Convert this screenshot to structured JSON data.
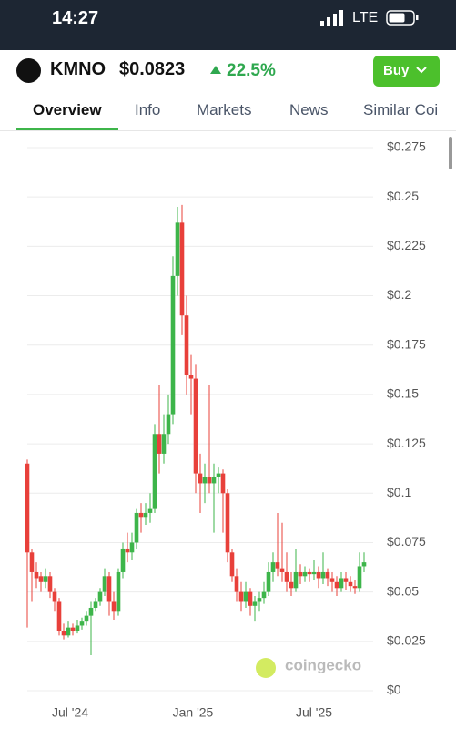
{
  "status_bar": {
    "time": "14:27",
    "network": "LTE"
  },
  "header": {
    "symbol": "KMNO",
    "price": "$0.0823",
    "change": "22.5%",
    "button": "Buy"
  },
  "tabs": [
    "Overview",
    "Info",
    "Markets",
    "News",
    "Similar Coi"
  ],
  "watermark": "coingecko",
  "chart_data": {
    "type": "candlestick",
    "up_color": "#3db54a",
    "down_color": "#e8403a",
    "grid": true,
    "x": [
      0,
      1,
      2,
      3,
      4,
      5,
      6,
      7,
      8,
      9,
      10,
      11,
      12,
      13,
      14,
      15,
      16,
      17,
      18,
      19,
      20,
      21,
      22,
      23,
      24,
      25,
      26,
      27,
      28,
      29,
      30,
      31,
      32,
      33,
      34,
      35,
      36,
      37,
      38,
      39,
      40,
      41,
      42,
      43,
      44,
      45,
      46,
      47,
      48,
      49,
      50,
      51,
      52,
      53,
      54,
      55,
      56,
      57,
      58,
      59,
      60,
      61,
      62,
      63,
      64,
      65,
      66,
      67,
      68,
      69,
      70,
      71,
      72,
      73,
      74
    ],
    "open": [
      0.115,
      0.07,
      0.06,
      0.058,
      0.055,
      0.058,
      0.05,
      0.045,
      0.03,
      0.028,
      0.032,
      0.03,
      0.033,
      0.035,
      0.038,
      0.042,
      0.045,
      0.05,
      0.058,
      0.045,
      0.04,
      0.06,
      0.072,
      0.07,
      0.075,
      0.09,
      0.088,
      0.09,
      0.092,
      0.13,
      0.12,
      0.13,
      0.14,
      0.21,
      0.237,
      0.19,
      0.16,
      0.158,
      0.11,
      0.105,
      0.108,
      0.105,
      0.108,
      0.11,
      0.1,
      0.07,
      0.058,
      0.05,
      0.045,
      0.05,
      0.043,
      0.045,
      0.047,
      0.05,
      0.06,
      0.065,
      0.062,
      0.06,
      0.055,
      0.052,
      0.06,
      0.058,
      0.06,
      0.059,
      0.06,
      0.057,
      0.06,
      0.057,
      0.055,
      0.052,
      0.057,
      0.055,
      0.053,
      0.052,
      0.063
    ],
    "high": [
      0.117,
      0.072,
      0.065,
      0.06,
      0.062,
      0.06,
      0.052,
      0.047,
      0.034,
      0.035,
      0.034,
      0.036,
      0.037,
      0.04,
      0.045,
      0.047,
      0.052,
      0.062,
      0.06,
      0.05,
      0.062,
      0.075,
      0.08,
      0.08,
      0.092,
      0.095,
      0.095,
      0.1,
      0.135,
      0.155,
      0.14,
      0.15,
      0.22,
      0.245,
      0.246,
      0.2,
      0.17,
      0.165,
      0.12,
      0.115,
      0.155,
      0.115,
      0.113,
      0.112,
      0.102,
      0.072,
      0.062,
      0.055,
      0.055,
      0.052,
      0.048,
      0.05,
      0.055,
      0.065,
      0.07,
      0.09,
      0.085,
      0.07,
      0.06,
      0.072,
      0.064,
      0.063,
      0.062,
      0.066,
      0.063,
      0.07,
      0.062,
      0.06,
      0.058,
      0.06,
      0.06,
      0.058,
      0.056,
      0.07,
      0.07
    ],
    "low": [
      0.032,
      0.045,
      0.052,
      0.05,
      0.052,
      0.047,
      0.04,
      0.028,
      0.026,
      0.027,
      0.028,
      0.029,
      0.031,
      0.033,
      0.018,
      0.04,
      0.043,
      0.048,
      0.038,
      0.036,
      0.038,
      0.057,
      0.065,
      0.066,
      0.072,
      0.08,
      0.084,
      0.085,
      0.09,
      0.11,
      0.115,
      0.125,
      0.135,
      0.2,
      0.18,
      0.15,
      0.14,
      0.1,
      0.09,
      0.095,
      0.1,
      0.08,
      0.1,
      0.08,
      0.065,
      0.055,
      0.045,
      0.04,
      0.042,
      0.038,
      0.035,
      0.04,
      0.044,
      0.048,
      0.055,
      0.058,
      0.055,
      0.05,
      0.048,
      0.05,
      0.054,
      0.055,
      0.055,
      0.056,
      0.052,
      0.054,
      0.053,
      0.05,
      0.048,
      0.05,
      0.051,
      0.05,
      0.049,
      0.05,
      0.06
    ],
    "close": [
      0.07,
      0.06,
      0.057,
      0.055,
      0.058,
      0.05,
      0.045,
      0.03,
      0.028,
      0.032,
      0.03,
      0.033,
      0.035,
      0.038,
      0.042,
      0.045,
      0.05,
      0.058,
      0.045,
      0.04,
      0.06,
      0.072,
      0.07,
      0.075,
      0.09,
      0.088,
      0.09,
      0.092,
      0.13,
      0.12,
      0.13,
      0.14,
      0.21,
      0.237,
      0.19,
      0.16,
      0.158,
      0.11,
      0.105,
      0.108,
      0.105,
      0.108,
      0.11,
      0.1,
      0.07,
      0.058,
      0.05,
      0.045,
      0.05,
      0.043,
      0.045,
      0.047,
      0.05,
      0.06,
      0.065,
      0.062,
      0.06,
      0.055,
      0.052,
      0.06,
      0.058,
      0.06,
      0.059,
      0.06,
      0.057,
      0.06,
      0.057,
      0.055,
      0.052,
      0.057,
      0.055,
      0.053,
      0.052,
      0.063,
      0.065
    ],
    "xlim": [
      -2,
      76
    ],
    "xticks": [
      {
        "value": 9.4,
        "label": "Jul '24"
      },
      {
        "value": 36.4,
        "label": "Jan '25"
      },
      {
        "value": 63,
        "label": "Jul '25"
      }
    ],
    "ylim": [
      0,
      0.275
    ],
    "yticks": [
      {
        "value": 0,
        "label": "$0"
      },
      {
        "value": 0.025,
        "label": "$0.025"
      },
      {
        "value": 0.05,
        "label": "$0.05"
      },
      {
        "value": 0.075,
        "label": "$0.075"
      },
      {
        "value": 0.1,
        "label": "$0.1"
      },
      {
        "value": 0.125,
        "label": "$0.125"
      },
      {
        "value": 0.15,
        "label": "$0.15"
      },
      {
        "value": 0.175,
        "label": "$0.175"
      },
      {
        "value": 0.2,
        "label": "$0.2"
      },
      {
        "value": 0.225,
        "label": "$0.225"
      },
      {
        "value": 0.25,
        "label": "$0.25"
      },
      {
        "value": 0.275,
        "label": "$0.275"
      }
    ]
  }
}
